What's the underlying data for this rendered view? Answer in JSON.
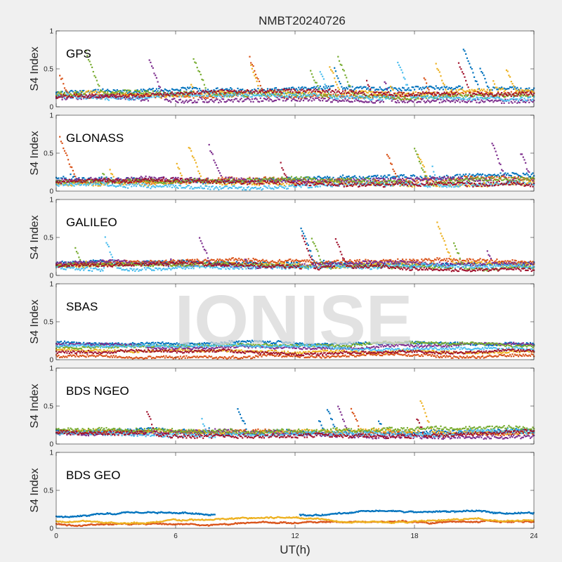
{
  "figure": {
    "title": "NMBT20240726",
    "xlabel": "UT(h)",
    "watermark": "IONISE"
  },
  "chart_data": {
    "type": "scatter",
    "xlim": [
      0,
      24
    ],
    "xticks": [
      "0",
      "6",
      "12",
      "18",
      "24"
    ],
    "ylim": [
      0,
      1
    ],
    "yticks": [
      "0",
      "0.5",
      "1"
    ],
    "colors": [
      "#0072BD",
      "#D95319",
      "#EDB120",
      "#7E2F8E",
      "#77AC30",
      "#4DBEEE",
      "#A2142F"
    ],
    "panels": [
      {
        "label": "GPS",
        "ylabel": "S4 Index",
        "base": [
          0.18,
          0.14,
          0.16,
          0.12,
          0.17,
          0.15,
          0.13
        ],
        "active": [
          0,
          24
        ],
        "noise": 0.05,
        "peakProb": 0.07,
        "peakMax": 0.55
      },
      {
        "label": "GLONASS",
        "ylabel": "S4 Index",
        "base": [
          0.15,
          0.12,
          0.1,
          0.14,
          0.11,
          0.09,
          0.13
        ],
        "active": [
          0,
          24
        ],
        "noise": 0.05,
        "peakProb": 0.05,
        "peakMax": 0.6
      },
      {
        "label": "GALILEO",
        "ylabel": "S4 Index",
        "base": [
          0.17,
          0.14,
          0.12,
          0.16,
          0.13,
          0.11,
          0.12
        ],
        "active": [
          0,
          24
        ],
        "noise": 0.04,
        "peakProb": 0.05,
        "peakMax": 0.55
      },
      {
        "label": "SBAS",
        "ylabel": "S4 Index",
        "base": [
          0.22,
          0.05,
          0.14,
          0.2,
          0.16,
          0.18,
          0.1
        ],
        "active": [
          0,
          24
        ],
        "noise": 0.03,
        "peakProb": 0.0,
        "peakMax": 0.1
      },
      {
        "label": "BDS NGEO",
        "ylabel": "S4 Index",
        "base": [
          0.17,
          0.15,
          0.16,
          0.14,
          0.18,
          0.13,
          0.15
        ],
        "active": [
          0,
          24
        ],
        "noise": 0.05,
        "peakProb": 0.06,
        "peakMax": 0.5
      },
      {
        "label": "BDS GEO",
        "ylabel": "S4 Index",
        "base": [
          0.15,
          0.06,
          0.09,
          0.0,
          0.0,
          0.0,
          0.0
        ],
        "active": [
          0,
          24
        ],
        "noise": 0.012,
        "peakProb": 0.0,
        "peakMax": 0.05,
        "series": 3
      }
    ]
  }
}
